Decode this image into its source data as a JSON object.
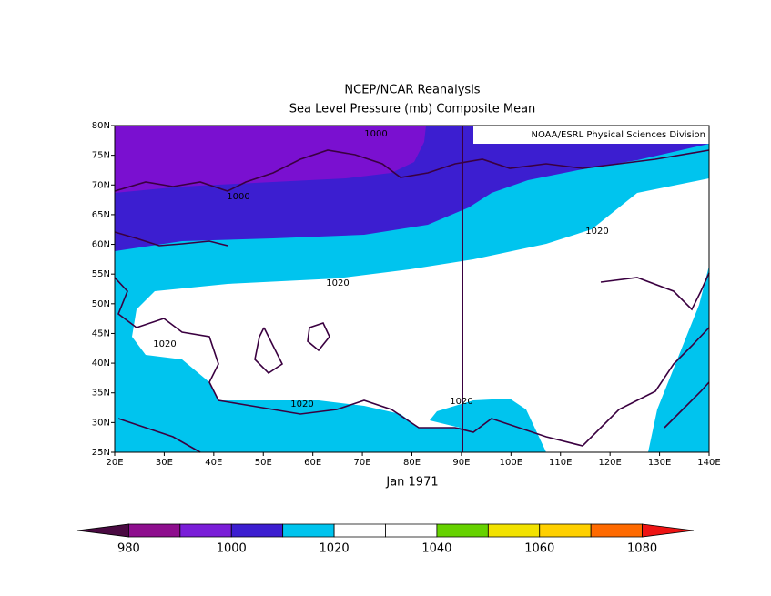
{
  "header": {
    "title": "NCEP/NCAR Reanalysis",
    "subtitle": "Sea Level Pressure (mb) Composite Mean"
  },
  "map": {
    "credit": "NOAA/ESRL Physical Sciences Division",
    "lon_ticks": [
      "20E",
      "30E",
      "40E",
      "50E",
      "60E",
      "70E",
      "80E",
      "90E",
      "100E",
      "110E",
      "120E",
      "130E",
      "140E"
    ],
    "lat_ticks": [
      "80N",
      "75N",
      "70N",
      "65N",
      "60N",
      "55N",
      "50N",
      "45N",
      "40N",
      "35N",
      "30N",
      "25N"
    ],
    "contour_labels": [
      "1000",
      "1000",
      "1020",
      "1020",
      "1020",
      "1020",
      "1020"
    ],
    "caption": "Jan 1971"
  },
  "colorbar": {
    "ticks": [
      "980",
      "1000",
      "1020",
      "1040",
      "1060",
      "1080"
    ],
    "colors": [
      "#4a0a42",
      "#8e0e8e",
      "#7a1ed8",
      "#3c1ed0",
      "#00c4ee",
      "#ffffff",
      "#ffffff",
      "#66d200",
      "#f2e200",
      "#ffd000",
      "#ff6a00",
      "#ee1414"
    ]
  }
}
